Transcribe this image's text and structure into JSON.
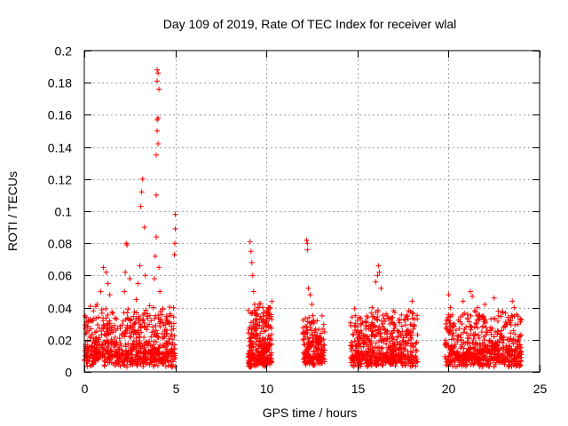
{
  "chart_data": {
    "type": "scatter",
    "title": "Day 109 of 2019, Rate Of TEC Index for receiver wlal",
    "xlabel": "GPS time / hours",
    "ylabel": "ROTI / TECUs",
    "xlim": [
      0,
      25
    ],
    "ylim": [
      0,
      0.2
    ],
    "xticks": [
      0,
      5,
      10,
      15,
      20,
      25
    ],
    "yticks": [
      0,
      0.02,
      0.04,
      0.06,
      0.08,
      0.1,
      0.12,
      0.14,
      0.16,
      0.18,
      0.2
    ],
    "ytick_labels": [
      "0",
      "0.02",
      "0.04",
      "0.06",
      "0.08",
      "0.1",
      "0.12",
      "0.14",
      "0.16",
      "0.18",
      "0.2"
    ],
    "grid": true,
    "marker": "+",
    "series": [
      {
        "name": "ROTI",
        "color": "#ff0000",
        "clusters": [
          {
            "x": [
              0,
              5
            ],
            "y_base": [
              0.003,
              0.012
            ],
            "y_spread": 0.03,
            "count": 700
          },
          {
            "x": [
              9,
              10.3
            ],
            "y_base": [
              0.003,
              0.01
            ],
            "y_spread": 0.035,
            "count": 300
          },
          {
            "x": [
              12,
              13.2
            ],
            "y_base": [
              0.004,
              0.01
            ],
            "y_spread": 0.025,
            "count": 200
          },
          {
            "x": [
              14.6,
              18.3
            ],
            "y_base": [
              0.003,
              0.01
            ],
            "y_spread": 0.03,
            "count": 550
          },
          {
            "x": [
              19.8,
              24
            ],
            "y_base": [
              0.003,
              0.01
            ],
            "y_spread": 0.03,
            "count": 600
          }
        ],
        "peaks": [
          {
            "x": 0.1,
            "y": 0.034
          },
          {
            "x": 0.5,
            "y": 0.038
          },
          {
            "x": 0.7,
            "y": 0.042
          },
          {
            "x": 0.9,
            "y": 0.05
          },
          {
            "x": 1.05,
            "y": 0.065
          },
          {
            "x": 1.2,
            "y": 0.062
          },
          {
            "x": 1.3,
            "y": 0.055
          },
          {
            "x": 1.4,
            "y": 0.048
          },
          {
            "x": 2.2,
            "y": 0.05
          },
          {
            "x": 2.25,
            "y": 0.062
          },
          {
            "x": 2.3,
            "y": 0.08
          },
          {
            "x": 2.35,
            "y": 0.079
          },
          {
            "x": 2.5,
            "y": 0.058
          },
          {
            "x": 2.85,
            "y": 0.045
          },
          {
            "x": 2.95,
            "y": 0.055
          },
          {
            "x": 3.05,
            "y": 0.066
          },
          {
            "x": 3.1,
            "y": 0.103
          },
          {
            "x": 3.15,
            "y": 0.112
          },
          {
            "x": 3.2,
            "y": 0.12
          },
          {
            "x": 3.3,
            "y": 0.09
          },
          {
            "x": 3.35,
            "y": 0.06
          },
          {
            "x": 3.8,
            "y": 0.04
          },
          {
            "x": 3.85,
            "y": 0.058
          },
          {
            "x": 3.9,
            "y": 0.072
          },
          {
            "x": 3.95,
            "y": 0.084
          },
          {
            "x": 3.95,
            "y": 0.11
          },
          {
            "x": 3.95,
            "y": 0.135
          },
          {
            "x": 4.0,
            "y": 0.15
          },
          {
            "x": 4.0,
            "y": 0.157
          },
          {
            "x": 4.0,
            "y": 0.181
          },
          {
            "x": 4.0,
            "y": 0.188
          },
          {
            "x": 4.05,
            "y": 0.158
          },
          {
            "x": 4.05,
            "y": 0.186
          },
          {
            "x": 4.05,
            "y": 0.142
          },
          {
            "x": 4.1,
            "y": 0.176
          },
          {
            "x": 4.1,
            "y": 0.065
          },
          {
            "x": 4.15,
            "y": 0.05
          },
          {
            "x": 4.95,
            "y": 0.073
          },
          {
            "x": 4.97,
            "y": 0.08
          },
          {
            "x": 5.0,
            "y": 0.089
          },
          {
            "x": 5.0,
            "y": 0.098
          },
          {
            "x": 9.1,
            "y": 0.081
          },
          {
            "x": 9.15,
            "y": 0.075
          },
          {
            "x": 9.2,
            "y": 0.068
          },
          {
            "x": 9.25,
            "y": 0.06
          },
          {
            "x": 9.3,
            "y": 0.05
          },
          {
            "x": 9.35,
            "y": 0.042
          },
          {
            "x": 9.8,
            "y": 0.04
          },
          {
            "x": 10.0,
            "y": 0.038
          },
          {
            "x": 12.2,
            "y": 0.082
          },
          {
            "x": 12.25,
            "y": 0.08
          },
          {
            "x": 12.25,
            "y": 0.076
          },
          {
            "x": 12.3,
            "y": 0.052
          },
          {
            "x": 12.4,
            "y": 0.048
          },
          {
            "x": 12.5,
            "y": 0.042
          },
          {
            "x": 12.55,
            "y": 0.035
          },
          {
            "x": 14.9,
            "y": 0.035
          },
          {
            "x": 15.2,
            "y": 0.03
          },
          {
            "x": 15.8,
            "y": 0.04
          },
          {
            "x": 16.0,
            "y": 0.056
          },
          {
            "x": 16.1,
            "y": 0.06
          },
          {
            "x": 16.15,
            "y": 0.066
          },
          {
            "x": 16.2,
            "y": 0.062
          },
          {
            "x": 16.3,
            "y": 0.052
          },
          {
            "x": 17.8,
            "y": 0.038
          },
          {
            "x": 18.0,
            "y": 0.044
          },
          {
            "x": 20.0,
            "y": 0.048
          },
          {
            "x": 20.1,
            "y": 0.04
          },
          {
            "x": 20.3,
            "y": 0.03
          },
          {
            "x": 20.8,
            "y": 0.044
          },
          {
            "x": 21.2,
            "y": 0.05
          },
          {
            "x": 21.3,
            "y": 0.047
          },
          {
            "x": 21.6,
            "y": 0.04
          },
          {
            "x": 22.0,
            "y": 0.042
          },
          {
            "x": 22.5,
            "y": 0.046
          },
          {
            "x": 23.5,
            "y": 0.044
          },
          {
            "x": 23.6,
            "y": 0.04
          }
        ]
      }
    ]
  }
}
